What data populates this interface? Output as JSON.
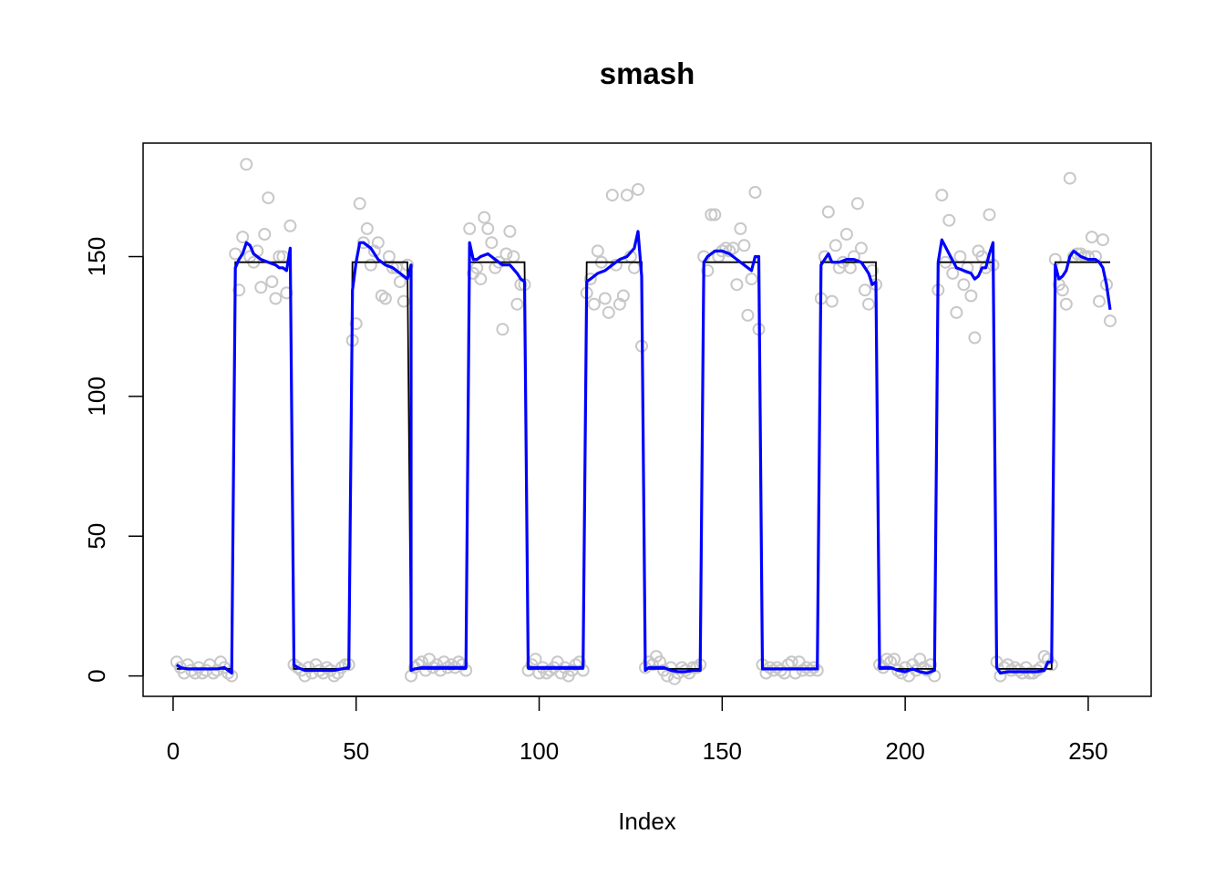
{
  "chart_data": {
    "type": "scatter",
    "title": "smash",
    "xlabel": "Index",
    "ylabel": "",
    "xlim": [
      -8.2,
      267.2
    ],
    "ylim": [
      -7.3,
      190.6
    ],
    "xticks": [
      0,
      50,
      100,
      150,
      200,
      250
    ],
    "yticks": [
      0,
      50,
      100,
      150
    ],
    "grid": false,
    "colors": {
      "points": "#c8c8c8",
      "truth": "#000000",
      "estimate": "#0000ff"
    },
    "truth_step": {
      "name": "truth",
      "low": 2.5,
      "high": 148,
      "segments": [
        [
          1,
          16,
          2.5
        ],
        [
          17,
          32,
          148
        ],
        [
          33,
          48,
          2.5
        ],
        [
          49,
          64,
          148
        ],
        [
          65,
          80,
          2.5
        ],
        [
          81,
          96,
          148
        ],
        [
          97,
          112,
          2.5
        ],
        [
          113,
          128,
          148
        ],
        [
          129,
          144,
          2.5
        ],
        [
          145,
          160,
          148
        ],
        [
          161,
          176,
          2.5
        ],
        [
          177,
          192,
          148
        ],
        [
          193,
          208,
          2.5
        ],
        [
          209,
          224,
          148
        ],
        [
          225,
          240,
          2.5
        ],
        [
          241,
          256,
          148
        ]
      ]
    },
    "points_high": [
      [
        17,
        151
      ],
      [
        18,
        138
      ],
      [
        19,
        157
      ],
      [
        20,
        183
      ],
      [
        21,
        150
      ],
      [
        22,
        148
      ],
      [
        23,
        152
      ],
      [
        24,
        139
      ],
      [
        25,
        158
      ],
      [
        26,
        171
      ],
      [
        27,
        141
      ],
      [
        28,
        135
      ],
      [
        29,
        150
      ],
      [
        30,
        150
      ],
      [
        31,
        137
      ],
      [
        32,
        161
      ],
      [
        49,
        120
      ],
      [
        50,
        126
      ],
      [
        51,
        169
      ],
      [
        52,
        155
      ],
      [
        53,
        160
      ],
      [
        54,
        147
      ],
      [
        55,
        152
      ],
      [
        56,
        155
      ],
      [
        57,
        136
      ],
      [
        58,
        135
      ],
      [
        59,
        150
      ],
      [
        60,
        146
      ],
      [
        61,
        146
      ],
      [
        62,
        141
      ],
      [
        63,
        134
      ],
      [
        64,
        147
      ],
      [
        81,
        160
      ],
      [
        82,
        144
      ],
      [
        83,
        146
      ],
      [
        84,
        142
      ],
      [
        85,
        164
      ],
      [
        86,
        160
      ],
      [
        87,
        155
      ],
      [
        88,
        146
      ],
      [
        89,
        148
      ],
      [
        90,
        124
      ],
      [
        91,
        151
      ],
      [
        92,
        159
      ],
      [
        93,
        150
      ],
      [
        94,
        133
      ],
      [
        95,
        140
      ],
      [
        96,
        140
      ],
      [
        113,
        137
      ],
      [
        114,
        142
      ],
      [
        115,
        133
      ],
      [
        116,
        152
      ],
      [
        117,
        148
      ],
      [
        118,
        135
      ],
      [
        119,
        130
      ],
      [
        120,
        172
      ],
      [
        121,
        147
      ],
      [
        122,
        133
      ],
      [
        123,
        136
      ],
      [
        124,
        172
      ],
      [
        125,
        150
      ],
      [
        126,
        146
      ],
      [
        127,
        174
      ],
      [
        128,
        118
      ],
      [
        145,
        150
      ],
      [
        146,
        145
      ],
      [
        147,
        165
      ],
      [
        148,
        165
      ],
      [
        149,
        150
      ],
      [
        150,
        152
      ],
      [
        151,
        153
      ],
      [
        152,
        152
      ],
      [
        153,
        153
      ],
      [
        154,
        140
      ],
      [
        155,
        160
      ],
      [
        156,
        154
      ],
      [
        157,
        129
      ],
      [
        158,
        142
      ],
      [
        159,
        173
      ],
      [
        160,
        124
      ],
      [
        177,
        135
      ],
      [
        178,
        150
      ],
      [
        179,
        166
      ],
      [
        180,
        134
      ],
      [
        181,
        154
      ],
      [
        182,
        146
      ],
      [
        183,
        148
      ],
      [
        184,
        158
      ],
      [
        185,
        146
      ],
      [
        186,
        150
      ],
      [
        187,
        169
      ],
      [
        188,
        153
      ],
      [
        189,
        138
      ],
      [
        190,
        133
      ],
      [
        191,
        145
      ],
      [
        192,
        140
      ],
      [
        209,
        138
      ],
      [
        210,
        172
      ],
      [
        211,
        148
      ],
      [
        212,
        163
      ],
      [
        213,
        144
      ],
      [
        214,
        130
      ],
      [
        215,
        150
      ],
      [
        216,
        140
      ],
      [
        217,
        146
      ],
      [
        218,
        136
      ],
      [
        219,
        121
      ],
      [
        220,
        152
      ],
      [
        221,
        150
      ],
      [
        222,
        146
      ],
      [
        223,
        165
      ],
      [
        224,
        147
      ],
      [
        241,
        149
      ],
      [
        242,
        140
      ],
      [
        243,
        138
      ],
      [
        244,
        133
      ],
      [
        245,
        178
      ],
      [
        246,
        150
      ],
      [
        247,
        151
      ],
      [
        248,
        151
      ],
      [
        249,
        150
      ],
      [
        250,
        150
      ],
      [
        251,
        157
      ],
      [
        252,
        150
      ],
      [
        253,
        134
      ],
      [
        254,
        156
      ],
      [
        255,
        140
      ],
      [
        256,
        127
      ]
    ],
    "points_low": [
      [
        1,
        5
      ],
      [
        2,
        3
      ],
      [
        3,
        1
      ],
      [
        4,
        4
      ],
      [
        5,
        2
      ],
      [
        6,
        1
      ],
      [
        7,
        3
      ],
      [
        8,
        1
      ],
      [
        9,
        2
      ],
      [
        10,
        4
      ],
      [
        11,
        1
      ],
      [
        12,
        2
      ],
      [
        13,
        5
      ],
      [
        14,
        3
      ],
      [
        15,
        1
      ],
      [
        16,
        0
      ],
      [
        33,
        4
      ],
      [
        34,
        3
      ],
      [
        35,
        2
      ],
      [
        36,
        0
      ],
      [
        37,
        3
      ],
      [
        38,
        1
      ],
      [
        39,
        4
      ],
      [
        40,
        2
      ],
      [
        41,
        1
      ],
      [
        42,
        3
      ],
      [
        43,
        2
      ],
      [
        44,
        0
      ],
      [
        45,
        1
      ],
      [
        46,
        3
      ],
      [
        47,
        4
      ],
      [
        48,
        4
      ],
      [
        65,
        0
      ],
      [
        66,
        3
      ],
      [
        67,
        4
      ],
      [
        68,
        5
      ],
      [
        69,
        2
      ],
      [
        70,
        6
      ],
      [
        71,
        3
      ],
      [
        72,
        4
      ],
      [
        73,
        2
      ],
      [
        74,
        5
      ],
      [
        75,
        3
      ],
      [
        76,
        4
      ],
      [
        77,
        3
      ],
      [
        78,
        5
      ],
      [
        79,
        4
      ],
      [
        80,
        2
      ],
      [
        97,
        2
      ],
      [
        98,
        4
      ],
      [
        99,
        6
      ],
      [
        100,
        1
      ],
      [
        101,
        3
      ],
      [
        102,
        1
      ],
      [
        103,
        2
      ],
      [
        104,
        3
      ],
      [
        105,
        5
      ],
      [
        106,
        1
      ],
      [
        107,
        3
      ],
      [
        108,
        0
      ],
      [
        109,
        2
      ],
      [
        110,
        4
      ],
      [
        111,
        5
      ],
      [
        112,
        2
      ],
      [
        129,
        3
      ],
      [
        130,
        5
      ],
      [
        131,
        4
      ],
      [
        132,
        7
      ],
      [
        133,
        5
      ],
      [
        134,
        2
      ],
      [
        135,
        0
      ],
      [
        136,
        3
      ],
      [
        137,
        -1
      ],
      [
        138,
        1
      ],
      [
        139,
        3
      ],
      [
        140,
        2
      ],
      [
        141,
        1
      ],
      [
        142,
        3
      ],
      [
        143,
        3
      ],
      [
        144,
        4
      ],
      [
        161,
        4
      ],
      [
        162,
        1
      ],
      [
        163,
        3
      ],
      [
        164,
        2
      ],
      [
        165,
        3
      ],
      [
        166,
        2
      ],
      [
        167,
        1
      ],
      [
        168,
        4
      ],
      [
        169,
        5
      ],
      [
        170,
        1
      ],
      [
        171,
        5
      ],
      [
        172,
        2
      ],
      [
        173,
        3
      ],
      [
        174,
        2
      ],
      [
        175,
        3
      ],
      [
        176,
        2
      ],
      [
        193,
        4
      ],
      [
        194,
        3
      ],
      [
        195,
        6
      ],
      [
        196,
        5
      ],
      [
        197,
        6
      ],
      [
        198,
        2
      ],
      [
        199,
        1
      ],
      [
        200,
        3
      ],
      [
        201,
        0
      ],
      [
        202,
        4
      ],
      [
        203,
        2
      ],
      [
        204,
        6
      ],
      [
        205,
        3
      ],
      [
        206,
        2
      ],
      [
        207,
        4
      ],
      [
        208,
        0
      ],
      [
        225,
        5
      ],
      [
        226,
        0
      ],
      [
        227,
        3
      ],
      [
        228,
        4
      ],
      [
        229,
        2
      ],
      [
        230,
        3
      ],
      [
        231,
        2
      ],
      [
        232,
        1
      ],
      [
        233,
        3
      ],
      [
        234,
        1
      ],
      [
        235,
        1
      ],
      [
        236,
        2
      ],
      [
        237,
        3
      ],
      [
        238,
        7
      ],
      [
        239,
        6
      ],
      [
        240,
        4
      ]
    ],
    "estimate": {
      "name": "smash",
      "points": [
        [
          1,
          4
        ],
        [
          2,
          3
        ],
        [
          4,
          2.5
        ],
        [
          8,
          2.5
        ],
        [
          12,
          2.5
        ],
        [
          14,
          3
        ],
        [
          15,
          2
        ],
        [
          16,
          1
        ],
        [
          17,
          146
        ],
        [
          18,
          149
        ],
        [
          19,
          151
        ],
        [
          20,
          155
        ],
        [
          21,
          154
        ],
        [
          22,
          151
        ],
        [
          24,
          149
        ],
        [
          26,
          148
        ],
        [
          28,
          147
        ],
        [
          29,
          146
        ],
        [
          30,
          146
        ],
        [
          31,
          145
        ],
        [
          32,
          153
        ],
        [
          33,
          4
        ],
        [
          34,
          3
        ],
        [
          36,
          2
        ],
        [
          40,
          2
        ],
        [
          44,
          2
        ],
        [
          46,
          2.5
        ],
        [
          48,
          3
        ],
        [
          49,
          138
        ],
        [
          50,
          148
        ],
        [
          51,
          155
        ],
        [
          52,
          155
        ],
        [
          54,
          153
        ],
        [
          56,
          149
        ],
        [
          58,
          147
        ],
        [
          60,
          146
        ],
        [
          62,
          144
        ],
        [
          64,
          142
        ],
        [
          65,
          147
        ],
        [
          65,
          2
        ],
        [
          66,
          2.5
        ],
        [
          68,
          3
        ],
        [
          70,
          3
        ],
        [
          74,
          3
        ],
        [
          78,
          3
        ],
        [
          80,
          3
        ],
        [
          81,
          155
        ],
        [
          82,
          149
        ],
        [
          83,
          149
        ],
        [
          84,
          150
        ],
        [
          86,
          151
        ],
        [
          88,
          149
        ],
        [
          90,
          147
        ],
        [
          92,
          147
        ],
        [
          94,
          144
        ],
        [
          95,
          142
        ],
        [
          96,
          141
        ],
        [
          97,
          3
        ],
        [
          98,
          3
        ],
        [
          100,
          3
        ],
        [
          104,
          3
        ],
        [
          108,
          3
        ],
        [
          110,
          3
        ],
        [
          112,
          3
        ],
        [
          113,
          141
        ],
        [
          114,
          142
        ],
        [
          116,
          144
        ],
        [
          118,
          145
        ],
        [
          120,
          147
        ],
        [
          122,
          149
        ],
        [
          124,
          150
        ],
        [
          126,
          153
        ],
        [
          127,
          159
        ],
        [
          128,
          143
        ],
        [
          129,
          2
        ],
        [
          130,
          3
        ],
        [
          132,
          3
        ],
        [
          134,
          3
        ],
        [
          136,
          2
        ],
        [
          138,
          1.5
        ],
        [
          140,
          1.5
        ],
        [
          142,
          2
        ],
        [
          144,
          2
        ],
        [
          145,
          148
        ],
        [
          146,
          150
        ],
        [
          148,
          152
        ],
        [
          150,
          152
        ],
        [
          152,
          151
        ],
        [
          154,
          149
        ],
        [
          156,
          147
        ],
        [
          158,
          145
        ],
        [
          159,
          150
        ],
        [
          160,
          150
        ],
        [
          161,
          2.5
        ],
        [
          162,
          2.5
        ],
        [
          166,
          2.5
        ],
        [
          170,
          2.5
        ],
        [
          174,
          2.5
        ],
        [
          176,
          2.5
        ],
        [
          177,
          147
        ],
        [
          178,
          149
        ],
        [
          179,
          151
        ],
        [
          180,
          148
        ],
        [
          182,
          148
        ],
        [
          184,
          149
        ],
        [
          186,
          149
        ],
        [
          188,
          148
        ],
        [
          189,
          146
        ],
        [
          190,
          144
        ],
        [
          191,
          140
        ],
        [
          192,
          141
        ],
        [
          193,
          3
        ],
        [
          194,
          3
        ],
        [
          196,
          3
        ],
        [
          198,
          2
        ],
        [
          200,
          1.5
        ],
        [
          202,
          2.5
        ],
        [
          204,
          1.5
        ],
        [
          206,
          1
        ],
        [
          208,
          2
        ],
        [
          209,
          148
        ],
        [
          210,
          156
        ],
        [
          212,
          151
        ],
        [
          214,
          146
        ],
        [
          216,
          145
        ],
        [
          218,
          144
        ],
        [
          219,
          142
        ],
        [
          220,
          143
        ],
        [
          221,
          146
        ],
        [
          222,
          146
        ],
        [
          223,
          151
        ],
        [
          224,
          155
        ],
        [
          225,
          3
        ],
        [
          226,
          1
        ],
        [
          228,
          1.5
        ],
        [
          230,
          1.5
        ],
        [
          232,
          1.5
        ],
        [
          234,
          1.5
        ],
        [
          236,
          1.5
        ],
        [
          238,
          2
        ],
        [
          239,
          5
        ],
        [
          240,
          5
        ],
        [
          241,
          147
        ],
        [
          242,
          142
        ],
        [
          243,
          143
        ],
        [
          244,
          145
        ],
        [
          245,
          150
        ],
        [
          246,
          152
        ],
        [
          248,
          150
        ],
        [
          250,
          149
        ],
        [
          252,
          149
        ],
        [
          253,
          148
        ],
        [
          254,
          146
        ],
        [
          255,
          140
        ],
        [
          256,
          131
        ]
      ]
    }
  }
}
